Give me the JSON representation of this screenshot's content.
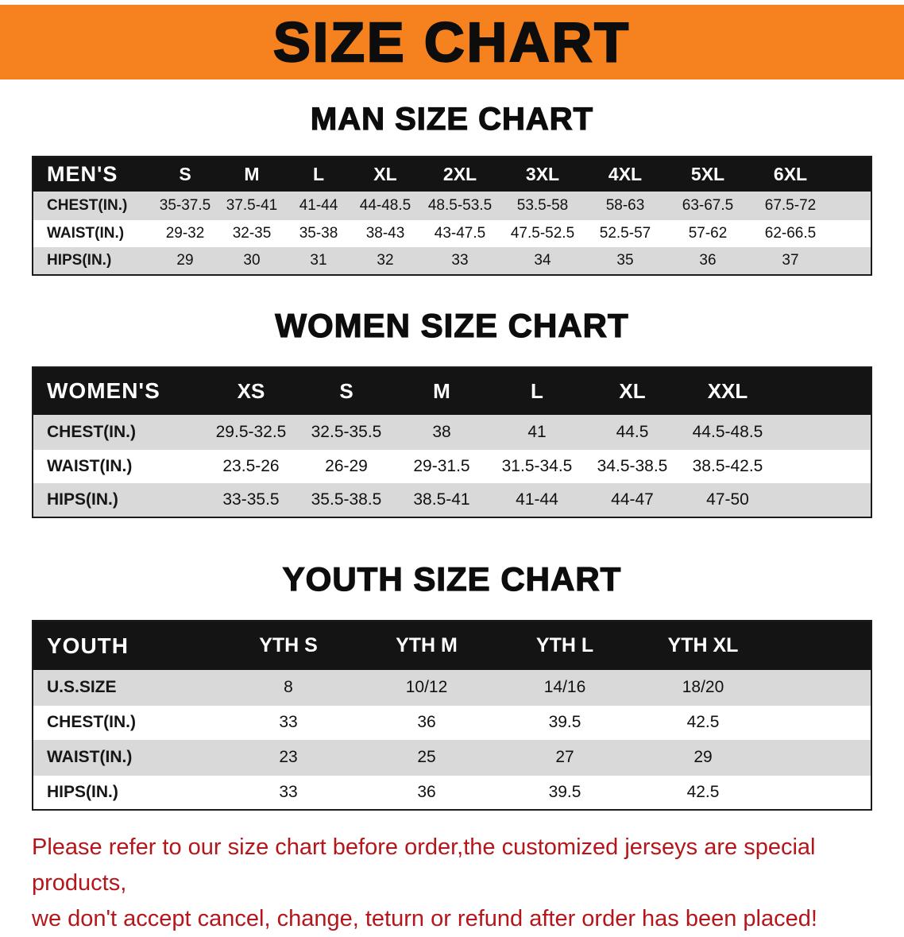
{
  "banner": {
    "title": "SIZE CHART"
  },
  "colors": {
    "banner_bg": "#f5821e",
    "title_text": "#0d0d0d",
    "table_header_bg": "#141414",
    "table_header_text": "#ffffff",
    "stripe": "#d9d9d9",
    "note_text": "#b5161b"
  },
  "charts": [
    {
      "id": "men",
      "heading": "MAN SIZE CHART",
      "label": "MEN'S",
      "columns": [
        "S",
        "M",
        "L",
        "XL",
        "2XL",
        "3XL",
        "4XL",
        "5XL",
        "6XL"
      ],
      "rows": [
        {
          "label": "CHEST(IN.)",
          "values": [
            "35-37.5",
            "37.5-41",
            "41-44",
            "44-48.5",
            "48.5-53.5",
            "53.5-58",
            "58-63",
            "63-67.5",
            "67.5-72"
          ]
        },
        {
          "label": "WAIST(IN.)",
          "values": [
            "29-32",
            "32-35",
            "35-38",
            "38-43",
            "43-47.5",
            "47.5-52.5",
            "52.5-57",
            "57-62",
            "62-66.5"
          ]
        },
        {
          "label": "HIPS(IN.)",
          "values": [
            "29",
            "30",
            "31",
            "32",
            "33",
            "34",
            "35",
            "36",
            "37"
          ]
        }
      ]
    },
    {
      "id": "women",
      "heading": "WOMEN SIZE CHART",
      "label": "WOMEN'S",
      "columns": [
        "XS",
        "S",
        "M",
        "L",
        "XL",
        "XXL"
      ],
      "rows": [
        {
          "label": "CHEST(IN.)",
          "values": [
            "29.5-32.5",
            "32.5-35.5",
            "38",
            "41",
            "44.5",
            "44.5-48.5"
          ]
        },
        {
          "label": "WAIST(IN.)",
          "values": [
            "23.5-26",
            "26-29",
            "29-31.5",
            "31.5-34.5",
            "34.5-38.5",
            "38.5-42.5"
          ]
        },
        {
          "label": "HIPS(IN.)",
          "values": [
            "33-35.5",
            "35.5-38.5",
            "38.5-41",
            "41-44",
            "44-47",
            "47-50"
          ]
        }
      ]
    },
    {
      "id": "youth",
      "heading": "YOUTH SIZE CHART",
      "label": "YOUTH",
      "columns": [
        "YTH S",
        "YTH M",
        "YTH L",
        "YTH XL"
      ],
      "rows": [
        {
          "label": "U.S.SIZE",
          "values": [
            "8",
            "10/12",
            "14/16",
            "18/20"
          ]
        },
        {
          "label": "CHEST(IN.)",
          "values": [
            "33",
            "36",
            "39.5",
            "42.5"
          ]
        },
        {
          "label": "WAIST(IN.)",
          "values": [
            "23",
            "25",
            "27",
            "29"
          ]
        },
        {
          "label": "HIPS(IN.)",
          "values": [
            "33",
            "36",
            "39.5",
            "42.5"
          ]
        }
      ]
    }
  ],
  "note": {
    "line1": "Please refer to our size chart before order,the customized jerseys are special products,",
    "line2": "we don't accept cancel, change, teturn or refund after order has been placed!"
  }
}
